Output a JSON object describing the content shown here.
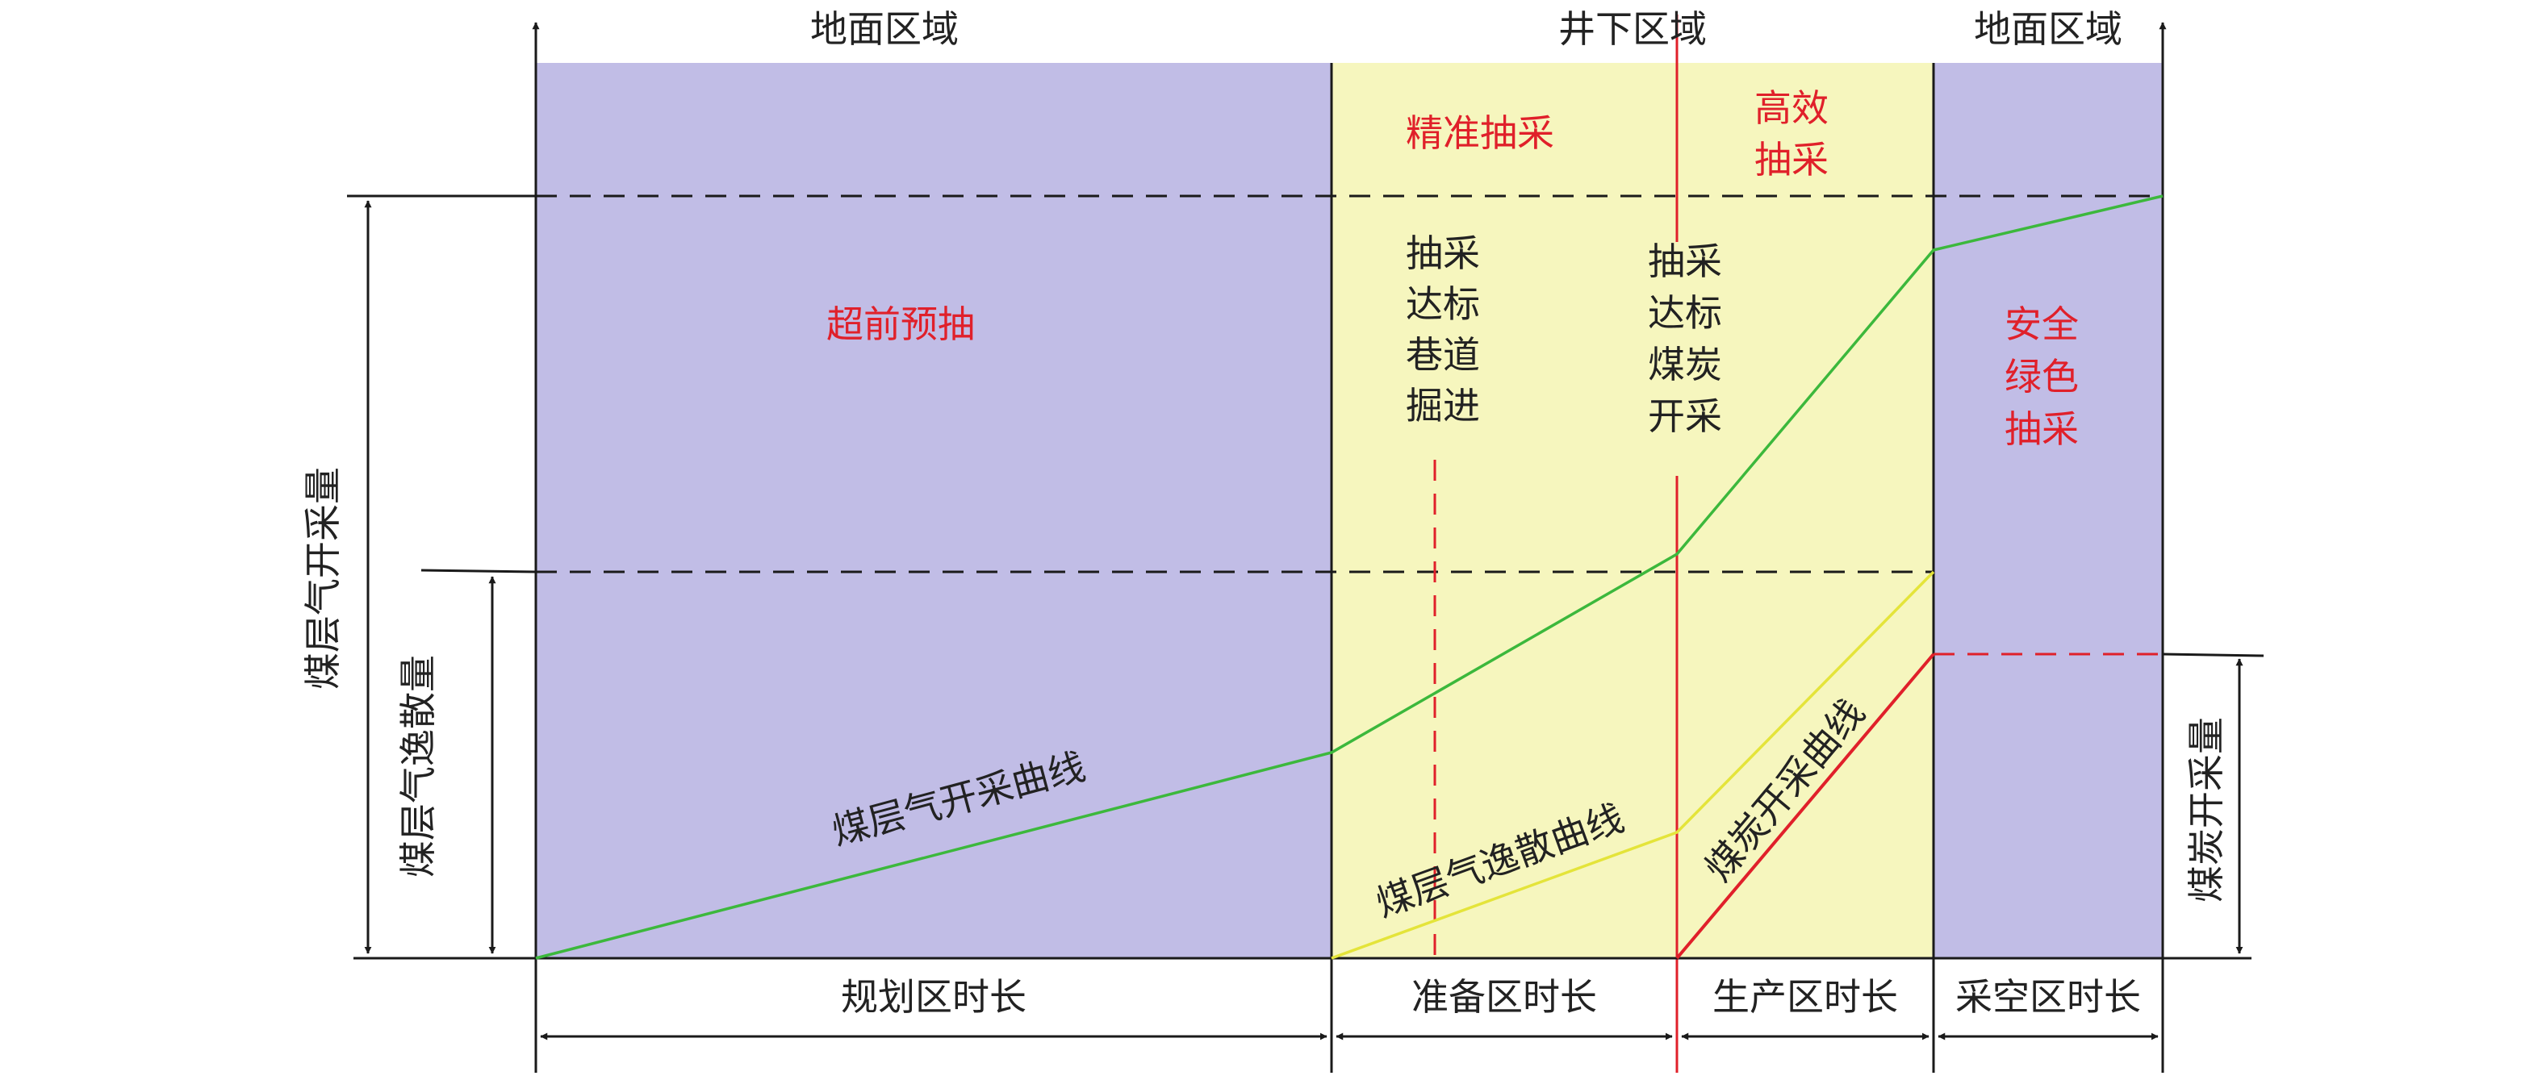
{
  "colors": {
    "surface_zone": "#c1bde6",
    "underground_zone": "#f6f6be",
    "gas_extraction_curve": "#3cb83c",
    "gas_emission_curve": "#e4e43a",
    "coal_curve": "#e0202a",
    "red_text": "#e0202a"
  },
  "top_labels": {
    "surface_left": "地面区域",
    "underground": "井下区域",
    "surface_right": "地面区域"
  },
  "zone_labels": {
    "advance_predrainage": "超前预抽",
    "precise_extraction": "精准抽采",
    "efficient_extraction": [
      "高效",
      "抽采"
    ],
    "safe_green_extraction": [
      "安全",
      "绿色",
      "抽采"
    ]
  },
  "stage_labels": {
    "roadway_excavation": [
      "抽采",
      "达标",
      "巷道",
      "掘进"
    ],
    "coal_mining": [
      "抽采",
      "达标",
      "煤炭",
      "开采"
    ]
  },
  "curve_labels": {
    "gas_extraction": "煤层气开采曲线",
    "gas_emission": "煤层气逸散曲线",
    "coal_mining": "煤炭开采曲线"
  },
  "axis_labels": {
    "gas_extraction_volume": "煤层气开采量",
    "gas_emission_volume": "煤层气逸散量",
    "coal_mining_volume": "煤炭开采量"
  },
  "duration_labels": {
    "planning": "规划区时长",
    "preparation": "准备区时长",
    "production": "生产区时长",
    "goaf": "采空区时长"
  }
}
